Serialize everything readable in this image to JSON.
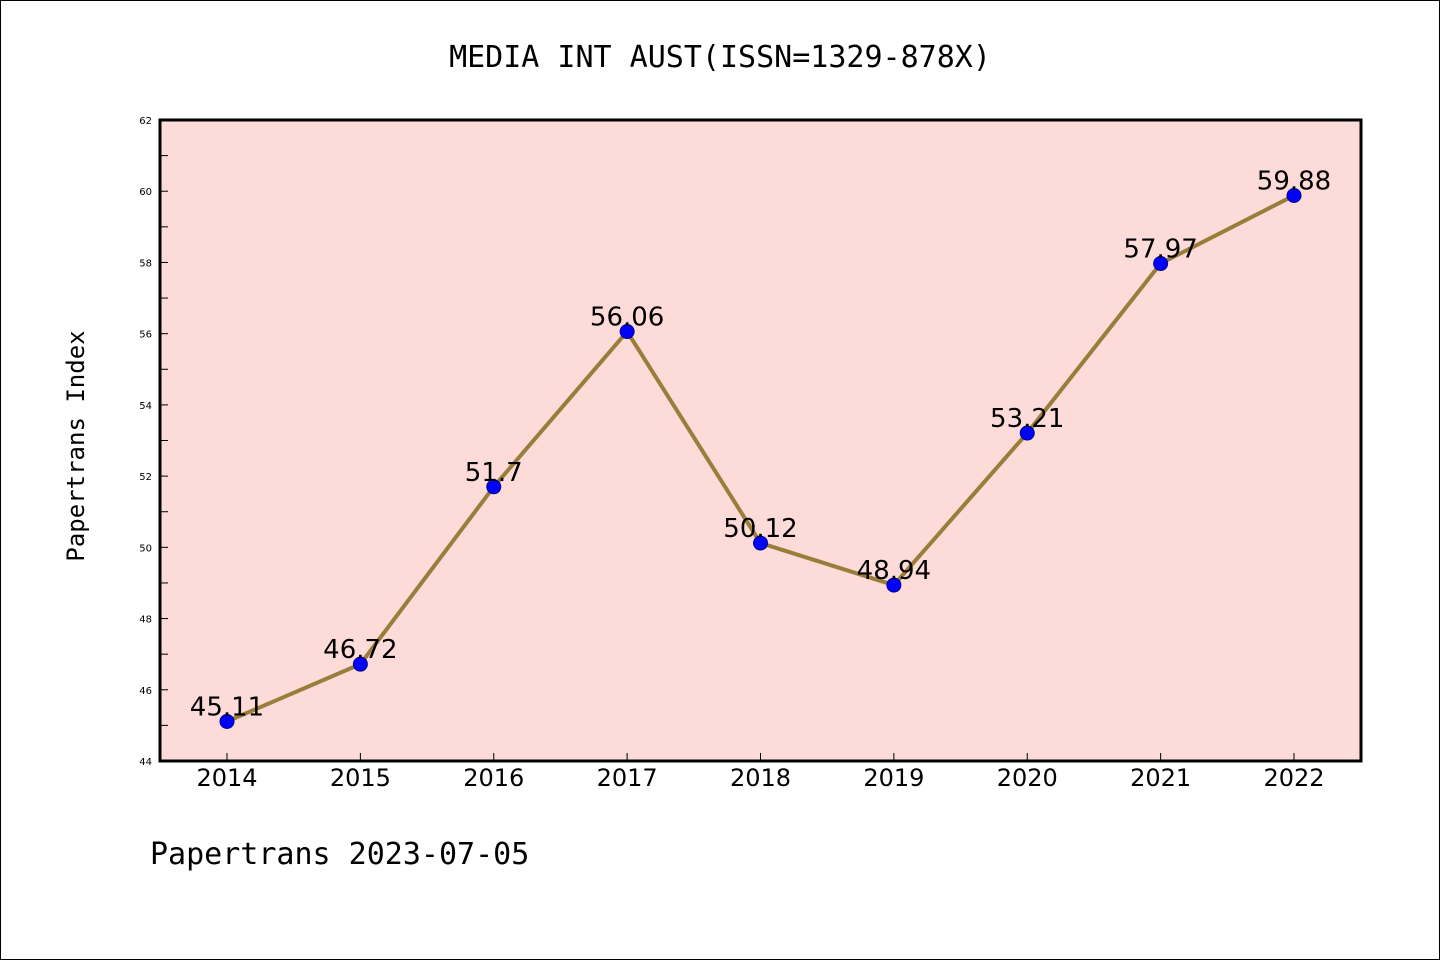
{
  "chart_data": {
    "type": "line",
    "title": "MEDIA INT AUST(ISSN=1329-878X)",
    "xlabel": "",
    "ylabel": "Papertrans Index",
    "categories": [
      "2014",
      "2015",
      "2016",
      "2017",
      "2018",
      "2019",
      "2020",
      "2021",
      "2022"
    ],
    "values": [
      45.11,
      46.72,
      51.7,
      56.06,
      50.12,
      48.94,
      53.21,
      57.97,
      59.88
    ],
    "data_labels": [
      "45.11",
      "46.72",
      "51.7",
      "56.06",
      "50.12",
      "48.94",
      "53.21",
      "57.97",
      "59.88"
    ],
    "ylim": [
      44,
      62
    ],
    "yticks": [
      "44",
      "46",
      "48",
      "50",
      "52",
      "54",
      "56",
      "58",
      "60",
      "62"
    ],
    "grid": false,
    "colors": {
      "plot_background": "#fddbd8",
      "line": "#9a7d3a",
      "marker": "#0000ff"
    }
  },
  "footer": {
    "text": "Papertrans 2023-07-05"
  }
}
